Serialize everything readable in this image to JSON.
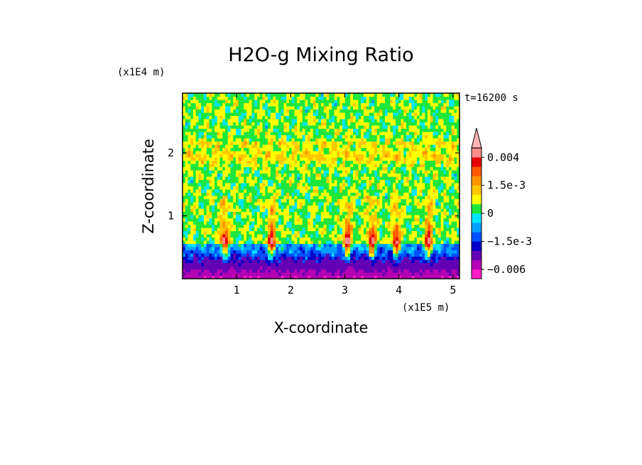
{
  "chart_data": {
    "type": "heatmap",
    "title": "H2O-g Mixing Ratio",
    "xlabel": "X-coordinate",
    "ylabel": "Z-coordinate",
    "x_unit": "(x1E5 m)",
    "y_unit": "(x1E4 m)",
    "time_label": "t=16200 s",
    "xlim": [
      0,
      5.12
    ],
    "ylim": [
      0,
      2.95
    ],
    "x_ticks": [
      {
        "value": 1,
        "label": "1"
      },
      {
        "value": 2,
        "label": "2"
      },
      {
        "value": 3,
        "label": "3"
      },
      {
        "value": 4,
        "label": "4"
      },
      {
        "value": 5,
        "label": "5"
      }
    ],
    "y_ticks": [
      {
        "value": 1,
        "label": "1"
      },
      {
        "value": 2,
        "label": "2"
      }
    ],
    "color_levels": [
      {
        "upper": -0.006,
        "color": "#ff1dc8"
      },
      {
        "upper": -0.004,
        "color": "#b400b4"
      },
      {
        "upper": -0.002,
        "color": "#6400b4"
      },
      {
        "upper": -0.0015,
        "color": "#0000c8"
      },
      {
        "upper": -0.001,
        "color": "#0050ff"
      },
      {
        "upper": -0.0005,
        "color": "#00a0ff"
      },
      {
        "upper": 0,
        "color": "#00e6ff"
      },
      {
        "upper": 0.0005,
        "color": "#1ee63c"
      },
      {
        "upper": 0.001,
        "color": "#ffff00"
      },
      {
        "upper": 0.0015,
        "color": "#ffc800"
      },
      {
        "upper": 0.002,
        "color": "#ff9600"
      },
      {
        "upper": 0.003,
        "color": "#ff5a00"
      },
      {
        "upper": 0.004,
        "color": "#e60000"
      },
      {
        "upper": 0.006,
        "color": "#ff8c8c"
      },
      {
        "upper": null,
        "color": "#ffb4b4"
      }
    ],
    "colorbar_labels": [
      {
        "value": 0.004,
        "label": "0.004"
      },
      {
        "value": 0.0015,
        "label": "1.5e-3"
      },
      {
        "value": 0,
        "label": "0"
      },
      {
        "value": -0.0015,
        "label": "−1.5e-3"
      },
      {
        "value": -0.006,
        "label": "−0.006"
      }
    ],
    "field_features": {
      "background_level": 0.0004,
      "upper_moist_band_z": [
        2.15,
        1.95
      ],
      "low_level_dry_layer_top": 0.55,
      "plume_x": [
        0.78,
        1.65,
        3.05,
        3.5,
        3.95,
        4.55
      ],
      "plume_peak_value": 0.0035,
      "surface_min_value": -0.007
    }
  }
}
